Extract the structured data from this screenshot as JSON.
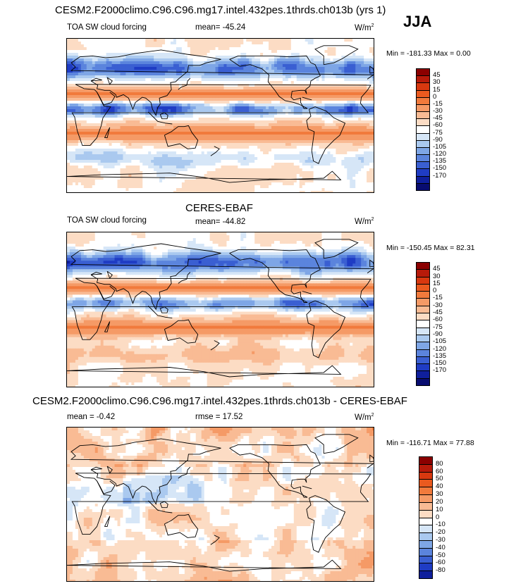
{
  "header": {
    "main_title": "CESM2.F2000climo.C96.C96.mg17.intel.432pes.1thrds.ch013b (yrs 1)",
    "season": "JJA"
  },
  "panels": [
    {
      "title": "",
      "left_label": "TOA SW cloud forcing",
      "center_label": "mean= -45.24",
      "units_base": "W/m",
      "units_sup": "2",
      "minmax": "Min = -181.33 Max =   0.00",
      "variant": "model"
    },
    {
      "title": "CERES-EBAF",
      "left_label": "TOA SW cloud forcing",
      "center_label": "mean= -44.82",
      "units_base": "W/m",
      "units_sup": "2",
      "minmax": "Min = -150.45 Max =  82.31",
      "variant": "obs"
    },
    {
      "title": "CESM2.F2000climo.C96.C96.mg17.intel.432pes.1thrds.ch013b - CERES-EBAF",
      "left_label": "mean =  -0.42",
      "center_label": "rmse =  17.52",
      "units_base": "W/m",
      "units_sup": "2",
      "minmax": "Min = -116.71 Max =  77.88",
      "variant": "diff"
    }
  ],
  "colorbars": [
    {
      "labels": [
        "45",
        "30",
        "15",
        "0",
        "-15",
        "-30",
        "-45",
        "-60",
        "-75",
        "-90",
        "-105",
        "-120",
        "-135",
        "-150",
        "-170"
      ],
      "colors": [
        "#8b0000",
        "#b71a0a",
        "#d8380f",
        "#ea5a1f",
        "#f17a3c",
        "#f59a66",
        "#f9bb94",
        "#fcdcc4",
        "#ffffff",
        "#d6e6f7",
        "#aac9ef",
        "#7ea6e6",
        "#5b84dd",
        "#3a5fd2",
        "#1f3cc4",
        "#0f1f9c",
        "#080c70"
      ]
    },
    {
      "labels": [
        "45",
        "30",
        "15",
        "0",
        "-15",
        "-30",
        "-45",
        "-60",
        "-75",
        "-90",
        "-105",
        "-120",
        "-135",
        "-150",
        "-170"
      ],
      "colors": [
        "#8b0000",
        "#b71a0a",
        "#d8380f",
        "#ea5a1f",
        "#f17a3c",
        "#f59a66",
        "#f9bb94",
        "#fcdcc4",
        "#ffffff",
        "#d6e6f7",
        "#aac9ef",
        "#7ea6e6",
        "#5b84dd",
        "#3a5fd2",
        "#1f3cc4",
        "#0f1f9c",
        "#080c70"
      ]
    },
    {
      "labels": [
        "80",
        "60",
        "50",
        "40",
        "30",
        "20",
        "10",
        "0",
        "-10",
        "-20",
        "-30",
        "-40",
        "-50",
        "-60",
        "-80"
      ],
      "colors": [
        "#8b0000",
        "#b71a0a",
        "#d8380f",
        "#ea5a1f",
        "#f17a3c",
        "#f59a66",
        "#f9bb94",
        "#fcdcc4",
        "#ffffff",
        "#d6e6f7",
        "#aac9ef",
        "#7ea6e6",
        "#5b84dd",
        "#3a5fd2",
        "#1f3cc4",
        "#0f1f9c"
      ]
    }
  ],
  "chart_data": [
    {
      "type": "heatmap",
      "title": "CESM2.F2000climo.C96.C96.mg17.intel.432pes.1thrds.ch013b (yrs 1)",
      "subtitle": "TOA SW cloud forcing",
      "units": "W/m2",
      "season": "JJA",
      "mean": -45.24,
      "min": -181.33,
      "max": 0.0,
      "levels": [
        -170,
        -150,
        -135,
        -120,
        -105,
        -90,
        -75,
        -60,
        -45,
        -30,
        -15,
        0,
        15,
        30,
        45
      ]
    },
    {
      "type": "heatmap",
      "title": "CERES-EBAF",
      "subtitle": "TOA SW cloud forcing",
      "units": "W/m2",
      "mean": -44.82,
      "min": -150.45,
      "max": 82.31,
      "levels": [
        -170,
        -150,
        -135,
        -120,
        -105,
        -90,
        -75,
        -60,
        -45,
        -30,
        -15,
        0,
        15,
        30,
        45
      ]
    },
    {
      "type": "heatmap",
      "title": "CESM2.F2000climo.C96.C96.mg17.intel.432pes.1thrds.ch013b - CERES-EBAF",
      "units": "W/m2",
      "mean": -0.42,
      "rmse": 17.52,
      "min": -116.71,
      "max": 77.88,
      "levels": [
        -80,
        -60,
        -50,
        -40,
        -30,
        -20,
        -10,
        0,
        10,
        20,
        30,
        40,
        50,
        60,
        80
      ]
    }
  ]
}
